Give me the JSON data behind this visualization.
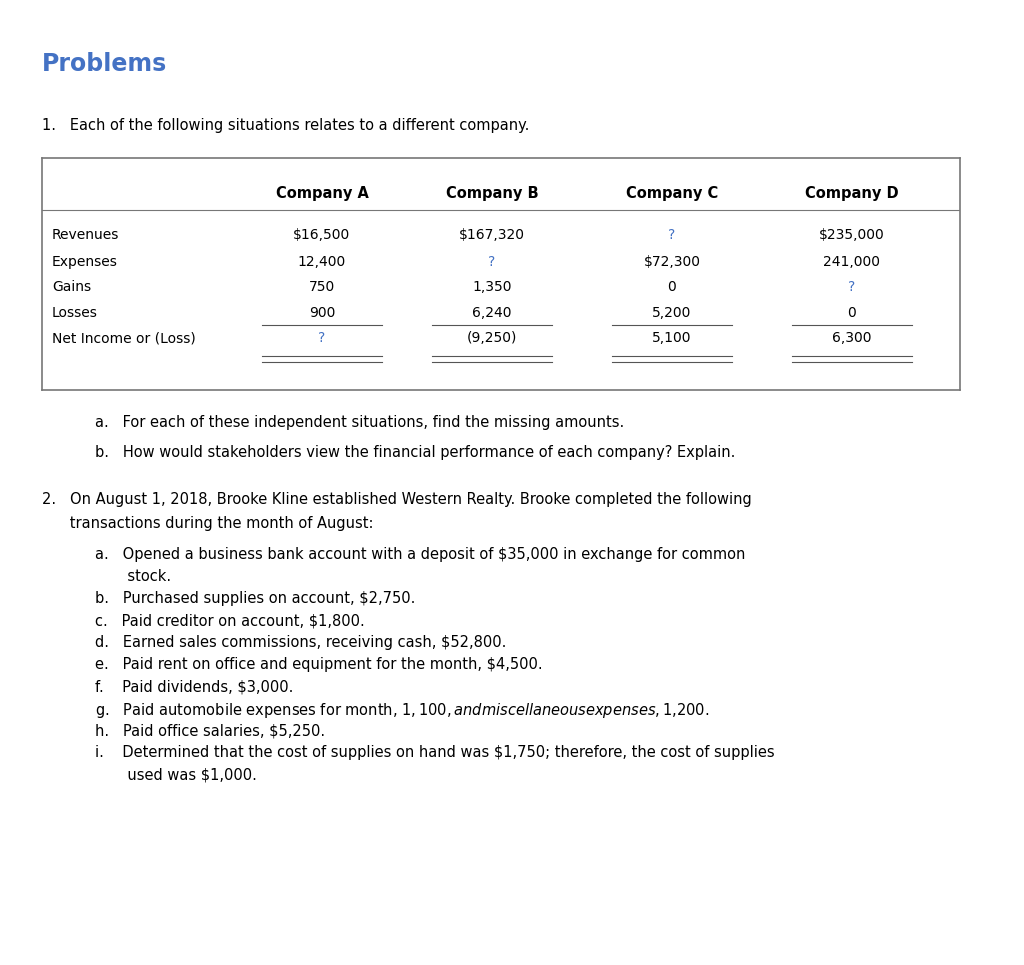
{
  "title": "Problems",
  "title_color": "#4472C4",
  "bg_color": "#ffffff",
  "problem1_intro": "1.   Each of the following situations relates to a different company.",
  "table_headers": [
    "Company A",
    "Company B",
    "Company C",
    "Company D"
  ],
  "table_rows": [
    [
      "Revenues",
      "$16,500",
      "$167,320",
      "?",
      "$235,000"
    ],
    [
      "Expenses",
      "12,400",
      "?",
      "$72,300",
      "241,000"
    ],
    [
      "Gains",
      "750",
      "1,350",
      "0",
      "?"
    ],
    [
      "Losses",
      "900",
      "6,240",
      "5,200",
      "0"
    ],
    [
      "Net Income or (Loss)",
      "?",
      "(9,250)",
      "5,100",
      "6,300"
    ]
  ],
  "sub_a": "a.   For each of these independent situations, find the missing amounts.",
  "sub_b": "b.   How would stakeholders view the financial performance of each company? Explain.",
  "p2_line1": "2.   On August 1, 2018, Brooke Kline established Western Realty. Brooke completed the following",
  "p2_line2": "      transactions during the month of August:",
  "problem2_items": [
    [
      "a.   Opened a business bank account with a deposit of $35,000 in exchange for common",
      "       stock."
    ],
    [
      "b.   Purchased supplies on account, $2,750."
    ],
    [
      "c.   Paid creditor on account, $1,800."
    ],
    [
      "d.   Earned sales commissions, receiving cash, $52,800."
    ],
    [
      "e.   Paid rent on office and equipment for the month, $4,500."
    ],
    [
      "f.    Paid dividends, $3,000."
    ],
    [
      "g.   Paid automobile expenses for month, $1,100, and miscellaneous expenses, $1,200."
    ],
    [
      "h.   Paid office salaries, $5,250."
    ],
    [
      "i.    Determined that the cost of supplies on hand was $1,750; therefore, the cost of supplies",
      "       used was $1,000."
    ]
  ],
  "font_size_title": 17,
  "font_size_body": 10.5,
  "font_size_table_header": 10.5,
  "font_size_table_body": 10.0
}
